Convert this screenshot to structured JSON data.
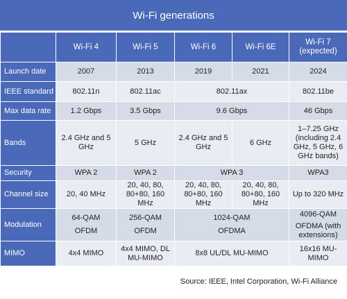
{
  "title": "Wi-Fi generations",
  "columns": [
    "Wi-Fi 4",
    "Wi-Fi 5",
    "Wi-Fi 6",
    "Wi-Fi 6E",
    "Wi-Fi 7 (expected)"
  ],
  "rows": {
    "launch_date": {
      "label": "Launch date",
      "wifi4": "2007",
      "wifi5": "2013",
      "wifi6": "2019",
      "wifi6e": "2021",
      "wifi7": "2024"
    },
    "ieee_standard": {
      "label": "IEEE standard",
      "wifi4": "802.11n",
      "wifi5": "802.11ac",
      "wifi6_6e": "802.11ax",
      "wifi7": "802.11be"
    },
    "max_data_rate": {
      "label": "Max data rate",
      "wifi4": "1.2 Gbps",
      "wifi5": "3.5 Gbps",
      "wifi6_6e": "9.6 Gbps",
      "wifi7": "46 Gbps"
    },
    "bands": {
      "label": "Bands",
      "wifi4": "2.4 GHz and 5 GHz",
      "wifi5": "5 GHz",
      "wifi6": "2.4 GHz and 5 GHz",
      "wifi6e": "6 GHz",
      "wifi7": "1–7.25 GHz (including 2.4 GHz, 5 GHz, 6 GHz bands)"
    },
    "security": {
      "label": "Security",
      "wifi4": "WPA 2",
      "wifi5": "WPA 2",
      "wifi6_6e": "WPA 3",
      "wifi7": "WPA3"
    },
    "channel_size": {
      "label": "Channel size",
      "wifi4": "20, 40 MHz",
      "wifi5": "20, 40, 80, 80+80, 160 MHz",
      "wifi6": "20, 40, 80, 80+80, 160 MHz",
      "wifi6e": "20, 40, 80, 80+80, 160 MHz",
      "wifi7": "Up to 320 MHz"
    },
    "modulation": {
      "label": "Modulation",
      "wifi4_qam": "64-QAM",
      "wifi4_ofdm": "OFDM",
      "wifi5_qam": "256-QAM",
      "wifi5_ofdm": "OFDM",
      "wifi6_6e_qam": "1024-QAM",
      "wifi6_6e_ofdma": "OFDMA",
      "wifi7_qam": "4096-QAM",
      "wifi7_ofdma": "OFDMA (with extensions)"
    },
    "mimo": {
      "label": "MIMO",
      "wifi4": "4x4 MIMO",
      "wifi5": "4x4 MIMO, DL MU-MIMO",
      "wifi6_6e": "8x8 UL/DL MU-MIMO",
      "wifi7": "16x16 MU-MIMO"
    }
  },
  "source": "Source: IEEE, Intel Corporation, Wi-Fi Alliance",
  "colors": {
    "header": "#4a6ab9",
    "row_odd": "#d6dbe8",
    "row_even": "#e9ecf2"
  }
}
